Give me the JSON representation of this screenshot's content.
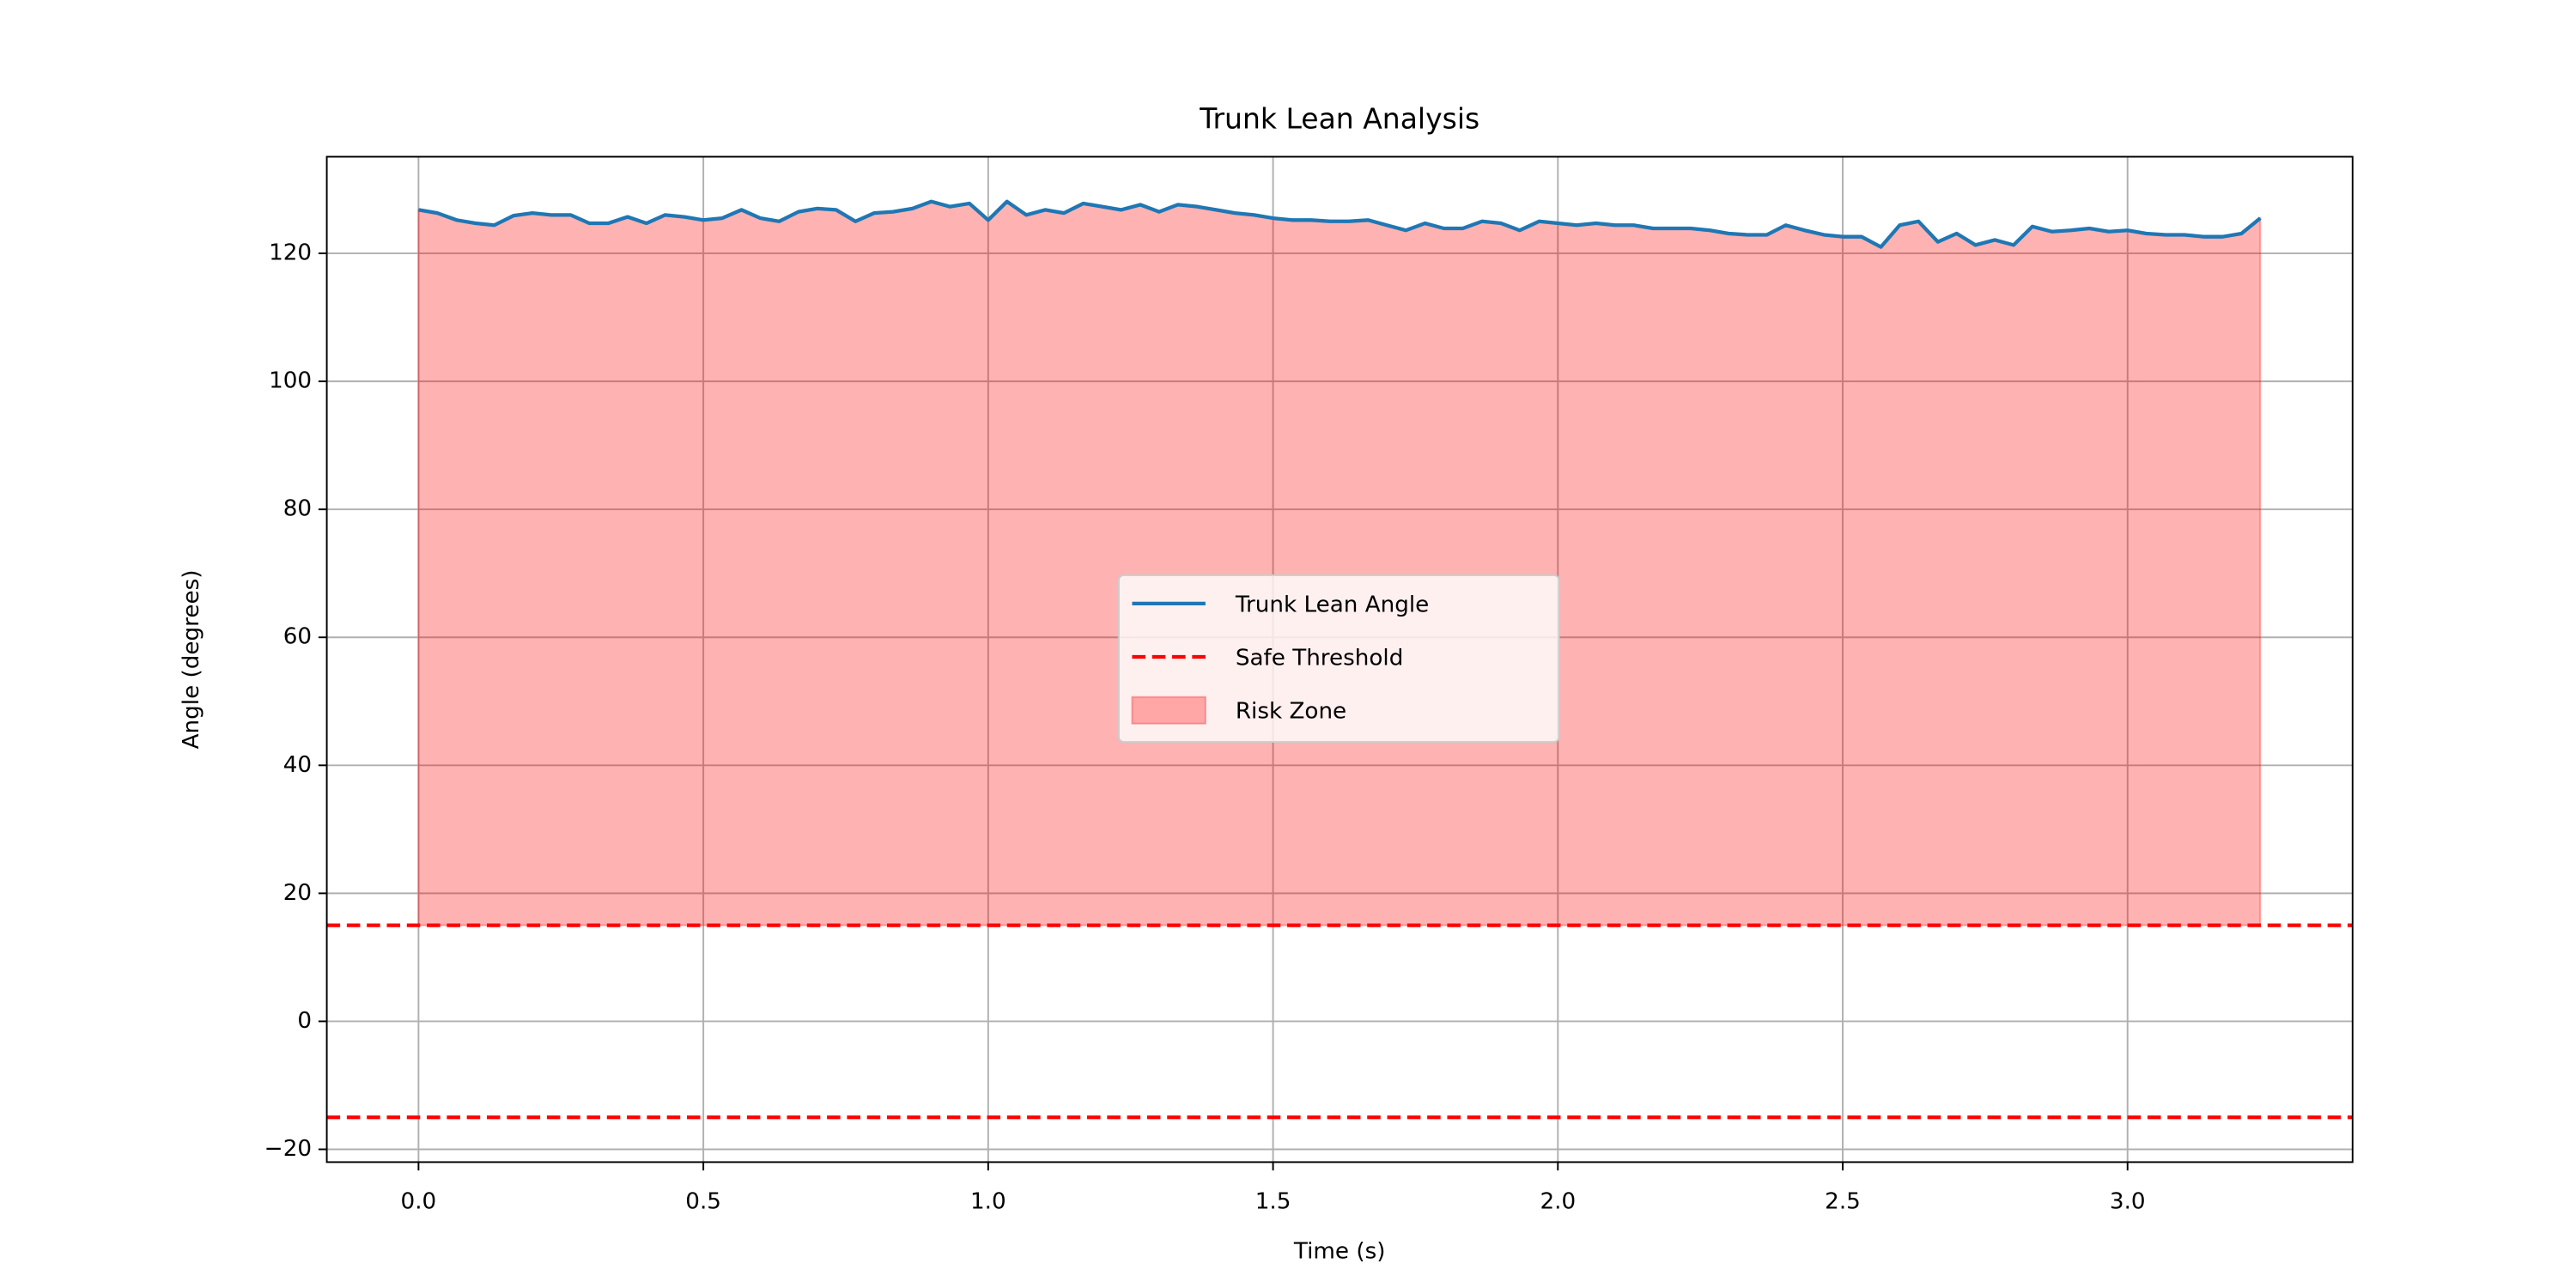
{
  "chart_data": {
    "type": "line",
    "title": "Trunk Lean Analysis",
    "x_label": "Time (s)",
    "y_label": "Angle (degrees)",
    "x": [
      0,
      0.033,
      0.067,
      0.1,
      0.133,
      0.167,
      0.2,
      0.233,
      0.267,
      0.3,
      0.333,
      0.367,
      0.4,
      0.433,
      0.467,
      0.5,
      0.533,
      0.567,
      0.6,
      0.633,
      0.667,
      0.7,
      0.733,
      0.767,
      0.8,
      0.833,
      0.867,
      0.9,
      0.933,
      0.967,
      1.0,
      1.033,
      1.067,
      1.1,
      1.133,
      1.167,
      1.2,
      1.233,
      1.267,
      1.3,
      1.333,
      1.367,
      1.4,
      1.433,
      1.467,
      1.5,
      1.533,
      1.567,
      1.6,
      1.633,
      1.667,
      1.7,
      1.733,
      1.767,
      1.8,
      1.833,
      1.867,
      1.9,
      1.933,
      1.967,
      2.0,
      2.033,
      2.067,
      2.1,
      2.133,
      2.167,
      2.2,
      2.233,
      2.267,
      2.3,
      2.333,
      2.367,
      2.4,
      2.433,
      2.467,
      2.5,
      2.533,
      2.567,
      2.6,
      2.633,
      2.667,
      2.7,
      2.733,
      2.767,
      2.8,
      2.833,
      2.867,
      2.9,
      2.933,
      2.967,
      3.0,
      3.033,
      3.067,
      3.1,
      3.133,
      3.167,
      3.2,
      3.233
    ],
    "series": [
      {
        "name": "Trunk Lean Angle",
        "color": "#1f77b4",
        "values": [
          126.8,
          126.3,
          125.2,
          124.7,
          124.4,
          125.9,
          126.3,
          126.0,
          126.0,
          124.7,
          124.7,
          125.7,
          124.7,
          126.0,
          125.7,
          125.2,
          125.5,
          126.8,
          125.5,
          125.0,
          126.5,
          127.0,
          126.8,
          125.0,
          126.3,
          126.5,
          127.0,
          128.1,
          127.3,
          127.8,
          125.2,
          128.1,
          126.0,
          126.8,
          126.3,
          127.8,
          127.3,
          126.8,
          127.6,
          126.5,
          127.6,
          127.3,
          126.8,
          126.3,
          126.0,
          125.5,
          125.2,
          125.2,
          125.0,
          125.0,
          125.2,
          124.4,
          123.6,
          124.7,
          123.9,
          123.9,
          125.0,
          124.7,
          123.6,
          125.0,
          124.7,
          124.4,
          124.7,
          124.4,
          124.4,
          123.9,
          123.9,
          123.9,
          123.6,
          123.1,
          122.9,
          122.9,
          124.4,
          123.6,
          122.9,
          122.6,
          122.6,
          121.0,
          124.4,
          125.0,
          121.8,
          123.1,
          121.3,
          122.1,
          121.3,
          124.2,
          123.4,
          123.6,
          123.9,
          123.4,
          123.6,
          123.1,
          122.9,
          122.9,
          122.6,
          122.6,
          123.1,
          125.5
        ]
      }
    ],
    "thresholds": {
      "name": "Safe Threshold",
      "color": "#ff0000",
      "values": [
        15,
        -15
      ]
    },
    "risk_zone": {
      "name": "Risk Zone",
      "color": "#ff0000",
      "alpha": 0.3
    },
    "xlim": [
      -0.161,
      3.395
    ],
    "ylim": [
      -22.0,
      135.1
    ],
    "xticks": [
      {
        "value": 0,
        "label": "0.0"
      },
      {
        "value": 0.5,
        "label": "0.5"
      },
      {
        "value": 1,
        "label": "1.0"
      },
      {
        "value": 1.5,
        "label": "1.5"
      },
      {
        "value": 2,
        "label": "2.0"
      },
      {
        "value": 2.5,
        "label": "2.5"
      },
      {
        "value": 3,
        "label": "3.0"
      }
    ],
    "yticks": [
      {
        "value": -20,
        "label": "−20"
      },
      0,
      20,
      40,
      60,
      80,
      100,
      120
    ],
    "grid": true,
    "legend": "center"
  }
}
